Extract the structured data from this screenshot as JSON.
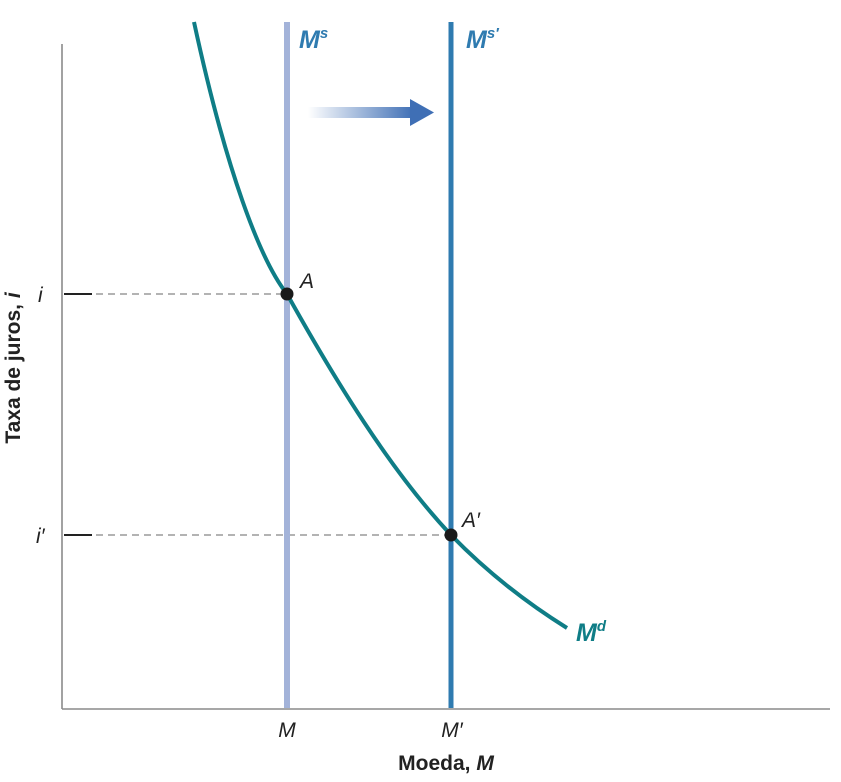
{
  "labels": {
    "y_axis": "Taxa de juros, ",
    "y_axis_var": "i",
    "x_axis": "Moeda, ",
    "x_axis_var": "M",
    "y_tick_i": "i",
    "y_tick_i_prime": "i′",
    "x_tick_m": "M",
    "x_tick_m_prime": "M′",
    "point_a": "A",
    "point_a_prime": "A′",
    "supply_base": "M",
    "supply_sup": "s",
    "supply_new_base": "M",
    "supply_new_sup": "s′",
    "demand_base": "M",
    "demand_sup": "d"
  },
  "colors": {
    "supply_old": "#a3b3d9",
    "supply_new": "#2f7bb0",
    "demand": "#0f7d86",
    "supply_label": "#2f7bb0",
    "demand_label": "#0f7d86",
    "arrow": "#3f6fb5"
  },
  "icons": {
    "shift_arrow": "right-arrow-icon"
  }
}
